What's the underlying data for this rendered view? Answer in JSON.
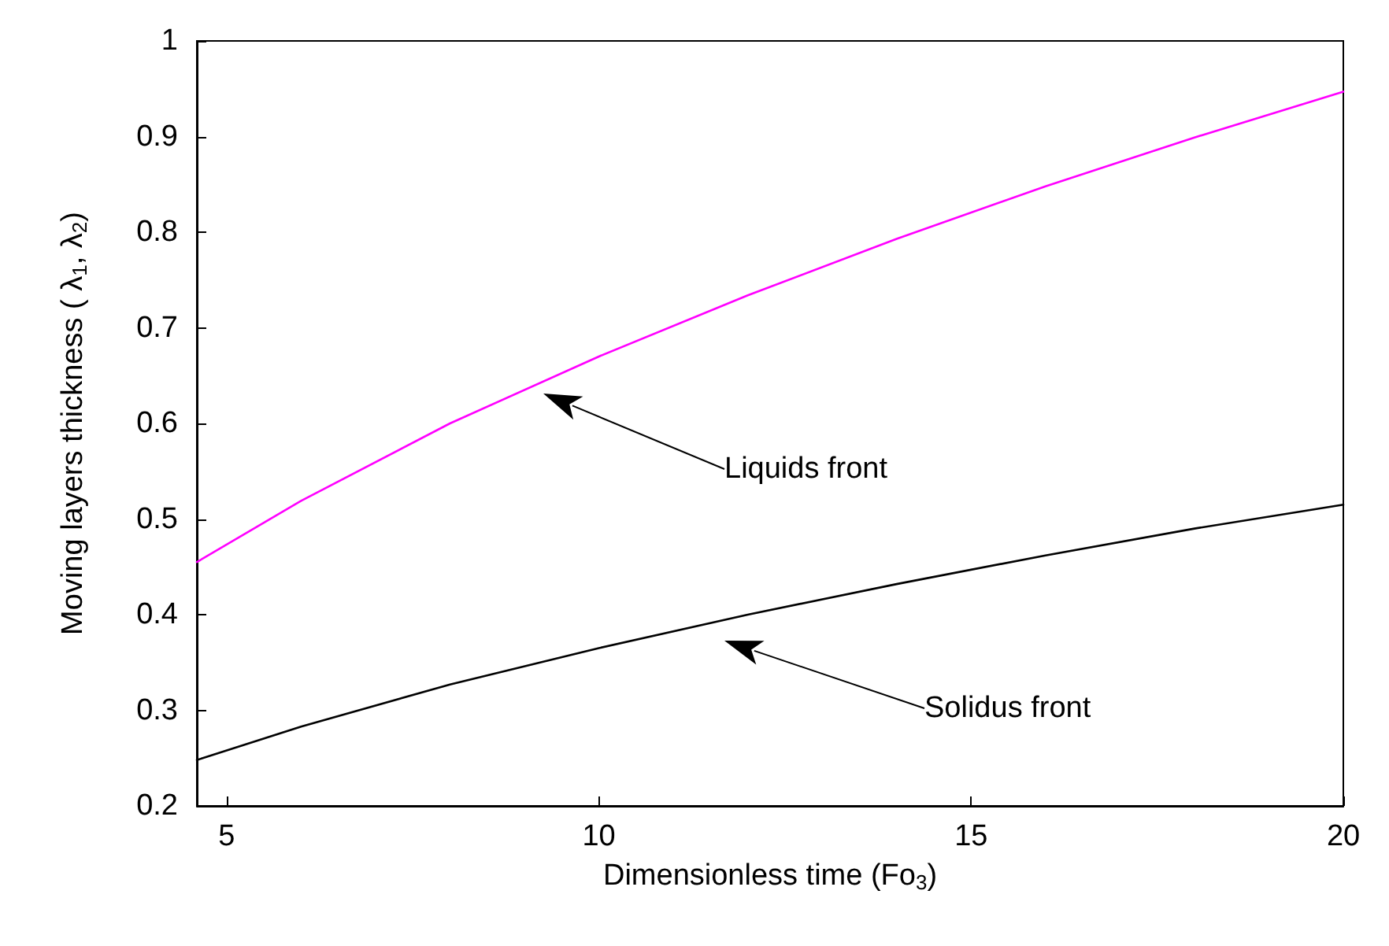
{
  "chart_data": {
    "type": "line",
    "xlabel": "Dimensionless time (Fo$_{3}$)",
    "ylabel": "Moving layers thickness ( λ$_{1}$, λ$_{2}$)",
    "x": [
      4.6,
      6,
      8,
      10,
      12,
      14,
      16,
      18,
      20
    ],
    "series": [
      {
        "color": "#ff00ff",
        "values": [
          0.455,
          0.519,
          0.6,
          0.67,
          0.734,
          0.793,
          0.848,
          0.899,
          0.947
        ]
      },
      {
        "color": "#000000",
        "values": [
          0.248,
          0.283,
          0.327,
          0.365,
          0.4,
          0.432,
          0.462,
          0.49,
          0.515
        ]
      }
    ],
    "xlim": [
      4.6,
      20
    ],
    "xticks": [
      5,
      10,
      15,
      20
    ],
    "ylim": [
      0.2,
      1
    ],
    "yticks": [
      0.2,
      0.3,
      0.4,
      0.5,
      0.6,
      0.7,
      0.8,
      0.9,
      1
    ],
    "annotations": [
      "Liquids front",
      "Solidus front"
    ],
    "grid": false,
    "marker": "none",
    "line_style": "solid"
  }
}
